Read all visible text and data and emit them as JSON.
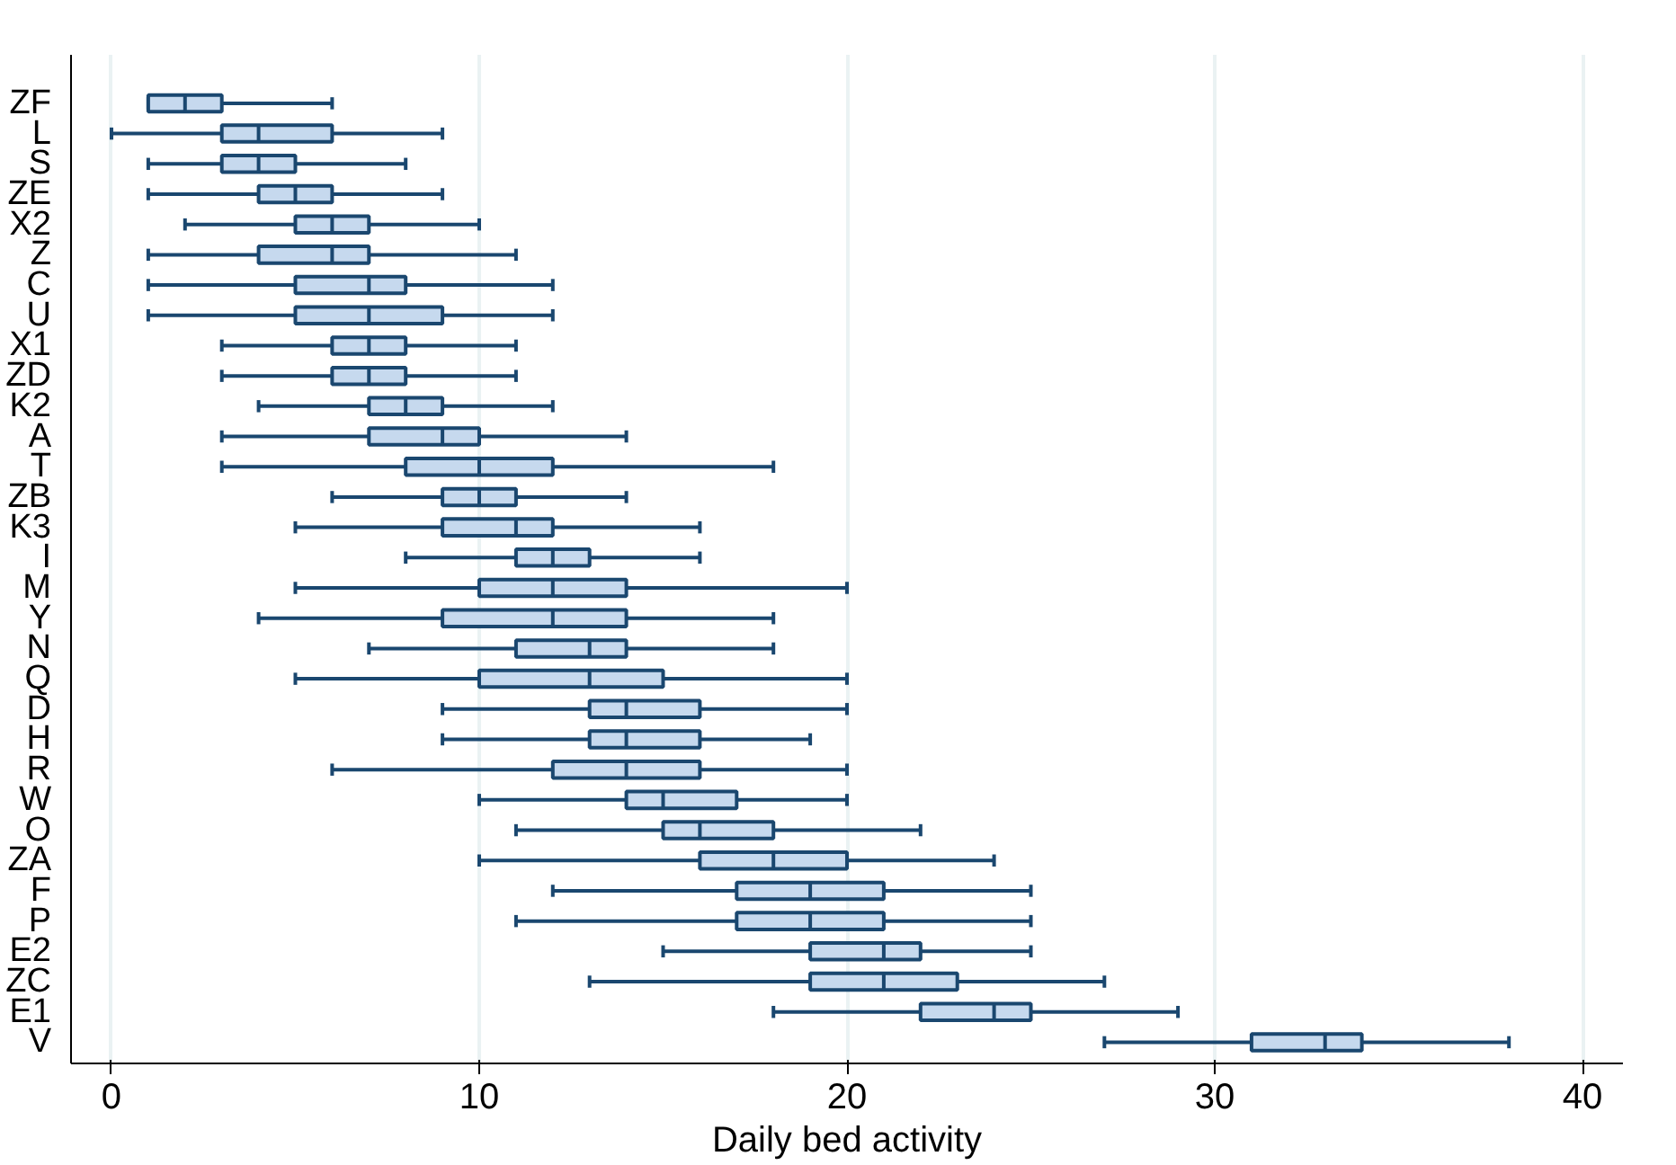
{
  "chart_data": {
    "type": "box",
    "orientation": "horizontal",
    "xlabel": "Daily bed activity",
    "categories": [
      "ZF",
      "L",
      "S",
      "ZE",
      "X2",
      "Z",
      "C",
      "U",
      "X1",
      "ZD",
      "K2",
      "A",
      "T",
      "ZB",
      "K3",
      "I",
      "M",
      "Y",
      "N",
      "Q",
      "D",
      "H",
      "R",
      "W",
      "O",
      "ZA",
      "F",
      "P",
      "E2",
      "ZC",
      "E1",
      "V"
    ],
    "xlim": [
      -1.1,
      41.1
    ],
    "xticks": [
      0,
      10,
      20,
      30,
      40
    ],
    "grid": "x",
    "series": [
      {
        "color": "#c6d9ee",
        "boxes": [
          {
            "low": 1,
            "q1": 1,
            "median": 2,
            "q3": 3,
            "high": 6
          },
          {
            "low": 0,
            "q1": 3,
            "median": 4,
            "q3": 6,
            "high": 9
          },
          {
            "low": 1,
            "q1": 3,
            "median": 4,
            "q3": 5,
            "high": 8
          },
          {
            "low": 1,
            "q1": 4,
            "median": 5,
            "q3": 6,
            "high": 9
          },
          {
            "low": 2,
            "q1": 5,
            "median": 6,
            "q3": 7,
            "high": 10
          },
          {
            "low": 1,
            "q1": 4,
            "median": 6,
            "q3": 7,
            "high": 11
          },
          {
            "low": 1,
            "q1": 5,
            "median": 7,
            "q3": 8,
            "high": 12
          },
          {
            "low": 1,
            "q1": 5,
            "median": 7,
            "q3": 9,
            "high": 12
          },
          {
            "low": 3,
            "q1": 6,
            "median": 7,
            "q3": 8,
            "high": 11
          },
          {
            "low": 3,
            "q1": 6,
            "median": 7,
            "q3": 8,
            "high": 11
          },
          {
            "low": 4,
            "q1": 7,
            "median": 8,
            "q3": 9,
            "high": 12
          },
          {
            "low": 3,
            "q1": 7,
            "median": 9,
            "q3": 10,
            "high": 14
          },
          {
            "low": 3,
            "q1": 8,
            "median": 10,
            "q3": 12,
            "high": 18
          },
          {
            "low": 6,
            "q1": 9,
            "median": 10,
            "q3": 11,
            "high": 14
          },
          {
            "low": 5,
            "q1": 9,
            "median": 11,
            "q3": 12,
            "high": 16
          },
          {
            "low": 8,
            "q1": 11,
            "median": 12,
            "q3": 13,
            "high": 16
          },
          {
            "low": 5,
            "q1": 10,
            "median": 12,
            "q3": 14,
            "high": 20
          },
          {
            "low": 4,
            "q1": 9,
            "median": 12,
            "q3": 14,
            "high": 18
          },
          {
            "low": 7,
            "q1": 11,
            "median": 13,
            "q3": 14,
            "high": 18
          },
          {
            "low": 5,
            "q1": 10,
            "median": 13,
            "q3": 15,
            "high": 20
          },
          {
            "low": 9,
            "q1": 13,
            "median": 14,
            "q3": 16,
            "high": 20
          },
          {
            "low": 9,
            "q1": 13,
            "median": 14,
            "q3": 16,
            "high": 19
          },
          {
            "low": 6,
            "q1": 12,
            "median": 14,
            "q3": 16,
            "high": 20
          },
          {
            "low": 10,
            "q1": 14,
            "median": 15,
            "q3": 17,
            "high": 20
          },
          {
            "low": 11,
            "q1": 15,
            "median": 16,
            "q3": 18,
            "high": 22
          },
          {
            "low": 10,
            "q1": 16,
            "median": 18,
            "q3": 20,
            "high": 24
          },
          {
            "low": 12,
            "q1": 17,
            "median": 19,
            "q3": 21,
            "high": 25
          },
          {
            "low": 11,
            "q1": 17,
            "median": 19,
            "q3": 21,
            "high": 25
          },
          {
            "low": 15,
            "q1": 19,
            "median": 21,
            "q3": 22,
            "high": 25
          },
          {
            "low": 13,
            "q1": 19,
            "median": 21,
            "q3": 23,
            "high": 27
          },
          {
            "low": 18,
            "q1": 22,
            "median": 24,
            "q3": 25,
            "high": 29
          },
          {
            "low": 27,
            "q1": 31,
            "median": 33,
            "q3": 34,
            "high": 38
          }
        ]
      }
    ]
  }
}
